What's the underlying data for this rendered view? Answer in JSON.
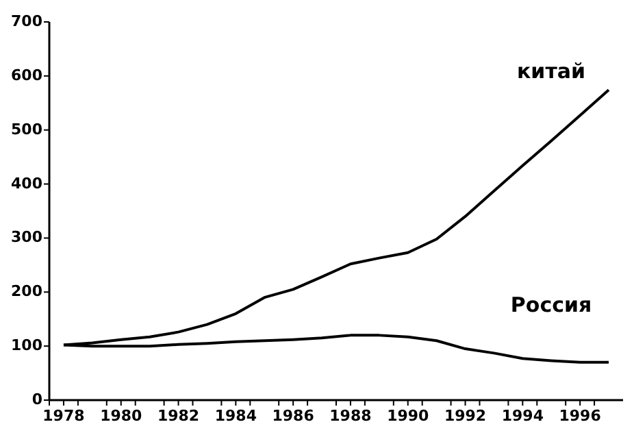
{
  "chart_data": {
    "type": "line",
    "x": [
      1978,
      1979,
      1980,
      1981,
      1982,
      1983,
      1984,
      1985,
      1986,
      1987,
      1988,
      1989,
      1990,
      1991,
      1992,
      1993,
      1994,
      1995,
      1996,
      1997
    ],
    "series": [
      {
        "name": "китай",
        "color": "#000000",
        "values": [
          102,
          106,
          112,
          117,
          126,
          140,
          160,
          190,
          205,
          228,
          252,
          263,
          273,
          298,
          340,
          387,
          434,
          480,
          527,
          574
        ]
      },
      {
        "name": "Россия",
        "color": "#000000",
        "values": [
          102,
          100,
          100,
          100,
          103,
          105,
          108,
          110,
          112,
          115,
          120,
          120,
          117,
          110,
          95,
          87,
          77,
          73,
          70,
          70
        ]
      }
    ],
    "xlim": [
      1977.5,
      1997.5
    ],
    "xticks": [
      {
        "value": 1977.5,
        "label": null
      },
      {
        "value": 1978,
        "label": "1978"
      },
      {
        "value": 1978.5,
        "label": null
      },
      {
        "value": 1979.5,
        "label": null
      },
      {
        "value": 1980,
        "label": "1980"
      },
      {
        "value": 1980.5,
        "label": null
      },
      {
        "value": 1981.5,
        "label": null
      },
      {
        "value": 1982,
        "label": "1982"
      },
      {
        "value": 1982.5,
        "label": null
      },
      {
        "value": 1983.5,
        "label": null
      },
      {
        "value": 1984,
        "label": "1984"
      },
      {
        "value": 1984.5,
        "label": null
      },
      {
        "value": 1985.5,
        "label": null
      },
      {
        "value": 1986,
        "label": "1986"
      },
      {
        "value": 1986.5,
        "label": null
      },
      {
        "value": 1987.5,
        "label": null
      },
      {
        "value": 1988,
        "label": "1988"
      },
      {
        "value": 1988.5,
        "label": null
      },
      {
        "value": 1989.5,
        "label": null
      },
      {
        "value": 1990,
        "label": "1990"
      },
      {
        "value": 1990.5,
        "label": null
      },
      {
        "value": 1991.5,
        "label": null
      },
      {
        "value": 1992,
        "label": "1992"
      },
      {
        "value": 1992.5,
        "label": null
      },
      {
        "value": 1993.5,
        "label": null
      },
      {
        "value": 1994,
        "label": "1994"
      },
      {
        "value": 1994.5,
        "label": null
      },
      {
        "value": 1995.5,
        "label": null
      },
      {
        "value": 1996,
        "label": "1996"
      },
      {
        "value": 1996.5,
        "label": null
      }
    ],
    "ylim": [
      0,
      700
    ],
    "yticks": [
      0,
      100,
      200,
      300,
      400,
      500,
      600,
      700
    ],
    "grid": false,
    "legend": false,
    "marker": "none",
    "line_style": "solid"
  }
}
